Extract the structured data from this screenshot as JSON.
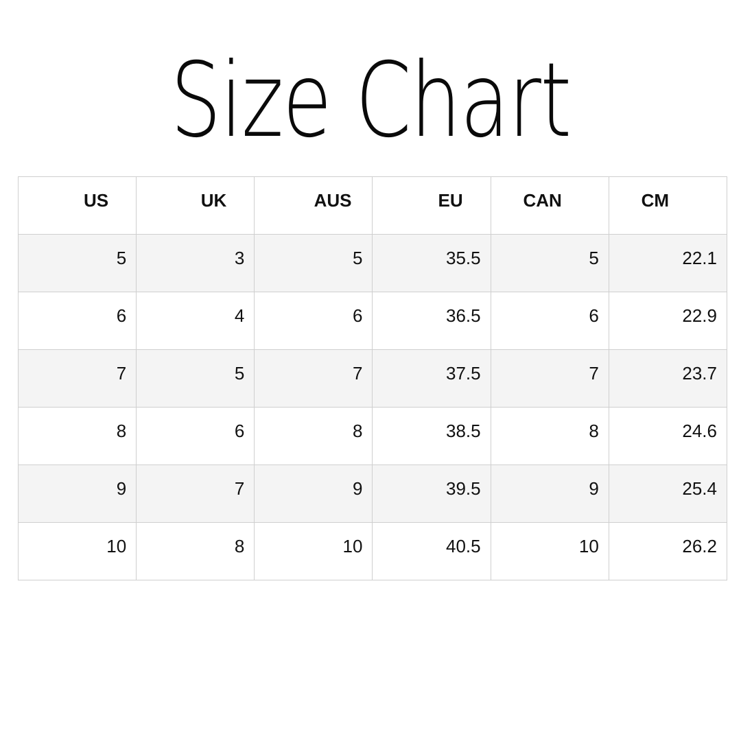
{
  "title": "Size Chart",
  "table": {
    "headers": [
      "US",
      "UK",
      "AUS",
      "EU",
      "CAN",
      "CM"
    ],
    "rows": [
      [
        "5",
        "3",
        "5",
        "35.5",
        "5",
        "22.1"
      ],
      [
        "6",
        "4",
        "6",
        "36.5",
        "6",
        "22.9"
      ],
      [
        "7",
        "5",
        "7",
        "37.5",
        "7",
        "23.7"
      ],
      [
        "8",
        "6",
        "8",
        "38.5",
        "8",
        "24.6"
      ],
      [
        "9",
        "7",
        "9",
        "39.5",
        "9",
        "25.4"
      ],
      [
        "10",
        "8",
        "10",
        "40.5",
        "10",
        "26.2"
      ]
    ]
  }
}
